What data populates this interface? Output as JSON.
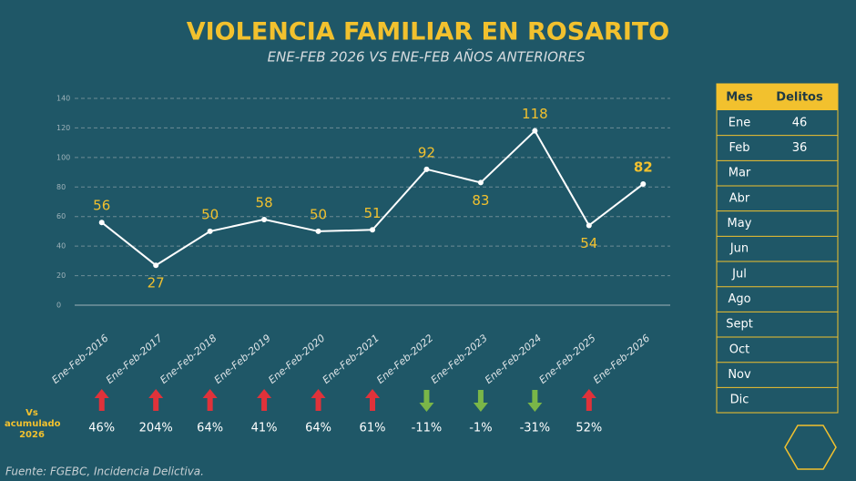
{
  "chart_data": {
    "type": "line",
    "title": "VIOLENCIA FAMILIAR EN ROSARITO",
    "subtitle": "ENE-FEB 2026 VS ENE-FEB AÑOS ANTERIORES",
    "categories": [
      "Ene-Feb-2016",
      "Ene-Feb-2017",
      "Ene-Feb-2018",
      "Ene-Feb-2019",
      "Ene-Feb-2020",
      "Ene-Feb-2021",
      "Ene-Feb-2022",
      "Ene-Feb-2023",
      "Ene-Feb-2024",
      "Ene-Feb-2025",
      "Ene-Feb-2026"
    ],
    "values": [
      56,
      27,
      50,
      58,
      50,
      51,
      92,
      83,
      118,
      54,
      82
    ],
    "color": "#ffffff",
    "label_color": "#f2c12e",
    "ylim": [
      0,
      140
    ],
    "yticks": [
      0,
      20,
      40,
      60,
      80,
      100,
      120,
      140
    ],
    "grid": true,
    "comparison": {
      "label": "Vs acumulado 2026",
      "values": [
        46,
        204,
        64,
        41,
        64,
        61,
        -11,
        -1,
        -31,
        52
      ],
      "value_labels": [
        "46%",
        "204%",
        "64%",
        "41%",
        "64%",
        "61%",
        "-11%",
        "-1%",
        "-31%",
        "52%"
      ],
      "up_color": "#e0323a",
      "down_color": "#7ab648"
    },
    "source": "Fuente: FGEBC, Incidencia Delictiva."
  },
  "table": {
    "header": [
      "Mes",
      "Delitos"
    ],
    "months": [
      "Ene",
      "Feb",
      "Mar",
      "Abr",
      "May",
      "Jun",
      "Jul",
      "Ago",
      "Sept",
      "Oct",
      "Nov",
      "Dic"
    ],
    "delitos": [
      46,
      36,
      null,
      null,
      null,
      null,
      null,
      null,
      null,
      null,
      null,
      null
    ]
  }
}
